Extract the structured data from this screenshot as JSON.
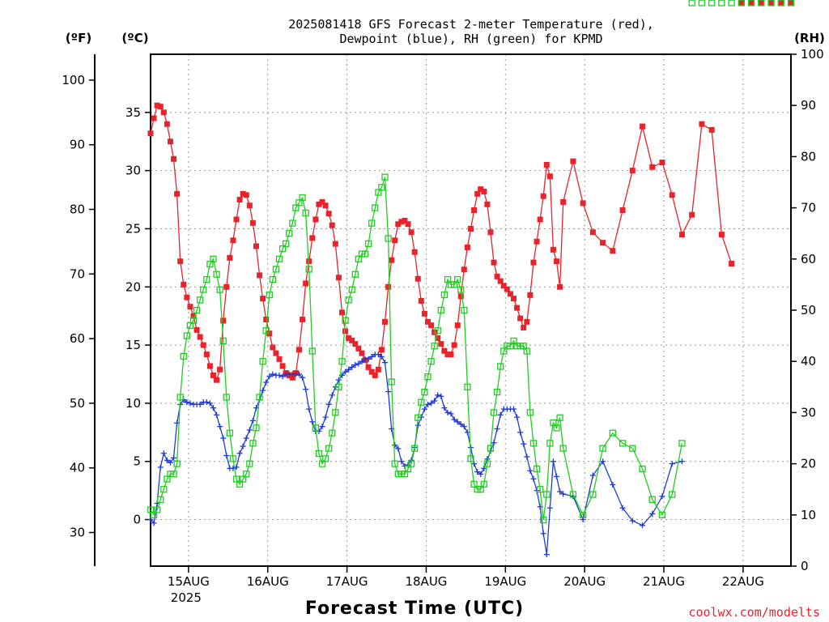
{
  "chart_data": {
    "type": "line",
    "title_line1": "2025081418 GFS Forecast 2-meter Temperature (red),",
    "title_line2": "Dewpoint (blue), RH (green) for KPMD",
    "xlabel": "Forecast Time (UTC)",
    "unit_f": "(ºF)",
    "unit_c": "(ºC)",
    "unit_rh": "(RH)",
    "credit": "coolwx.com/modelts",
    "xlim_hours": [
      -5.5,
      188.5
    ],
    "ylim_c": [
      -4,
      40
    ],
    "ylim_rh": [
      0,
      100
    ],
    "x_ticks": [
      {
        "hour": 6,
        "label": "15AUG",
        "sub": "2025"
      },
      {
        "hour": 30,
        "label": "16AUG",
        "sub": ""
      },
      {
        "hour": 54,
        "label": "17AUG",
        "sub": ""
      },
      {
        "hour": 78,
        "label": "18AUG",
        "sub": ""
      },
      {
        "hour": 102,
        "label": "19AUG",
        "sub": ""
      },
      {
        "hour": 126,
        "label": "20AUG",
        "sub": ""
      },
      {
        "hour": 150,
        "label": "21AUG",
        "sub": ""
      },
      {
        "hour": 174,
        "label": "22AUG",
        "sub": ""
      }
    ],
    "c_ticks": [
      0,
      5,
      10,
      15,
      20,
      25,
      30,
      35
    ],
    "f_ticks": [
      30,
      40,
      50,
      60,
      70,
      80,
      90,
      100
    ],
    "rh_ticks": [
      0,
      10,
      20,
      30,
      40,
      50,
      60,
      70,
      80,
      90,
      100
    ],
    "series": [
      {
        "name": "Temperature",
        "color": "#e8232a",
        "marker": "filled-square",
        "x": [
          -5.5,
          -4.5,
          -3.5,
          -2.5,
          -1.5,
          -0.5,
          0.5,
          1.5,
          2.5,
          3.5,
          4.5,
          5.5,
          6.5,
          7.5,
          8.5,
          9.5,
          10.5,
          11.5,
          12.5,
          13.5,
          14.5,
          15.5,
          16.5,
          17.5,
          18.5,
          19.5,
          20.5,
          21.5,
          22.5,
          23.5,
          24.5,
          25.5,
          26.5,
          27.5,
          28.5,
          29.5,
          30.5,
          31.5,
          32.5,
          33.5,
          34.5,
          35.5,
          36.5,
          37.5,
          38.5,
          39.5,
          40.5,
          41.5,
          42.5,
          43.5,
          44.5,
          45.5,
          46.5,
          47.5,
          48.5,
          49.5,
          50.5,
          51.5,
          52.5,
          53.5,
          54.5,
          55.5,
          56.5,
          57.5,
          58.5,
          59.5,
          60.5,
          61.5,
          62.5,
          63.5,
          64.5,
          65.5,
          66.5,
          67.5,
          68.5,
          69.5,
          70.5,
          71.5,
          72.5,
          73.5,
          74.5,
          75.5,
          76.5,
          77.5,
          78.5,
          79.5,
          80.5,
          81.5,
          82.5,
          83.5,
          84.5,
          85.5,
          86.5,
          87.5,
          88.5,
          89.5,
          90.5,
          91.5,
          92.5,
          93.5,
          94.5,
          95.5,
          96.5,
          97.5,
          98.5,
          99.5,
          100.5,
          101.5,
          102.5,
          103.5,
          104.5,
          105.5,
          106.5,
          107.5,
          108.5,
          109.5,
          110.5,
          111.5,
          112.5,
          113.5,
          114.5,
          115.5,
          116.5,
          117.5,
          118.5,
          119.5,
          122.5,
          125.5,
          128.5,
          131.5,
          134.5,
          137.5,
          140.5,
          143.5,
          146.5,
          149.5,
          152.5,
          155.5,
          158.5,
          161.5,
          164.5,
          167.5,
          170.5,
          173.5,
          176.5,
          179.5,
          182.5,
          185.5,
          188.5
        ],
        "c": [
          33.2,
          34.5,
          35.6,
          35.5,
          35.0,
          34.0,
          32.5,
          31.0,
          28.0,
          22.2,
          20.2,
          19.1,
          18.3,
          17.5,
          16.3,
          15.7,
          15.0,
          14.2,
          13.2,
          12.4,
          12.0,
          12.9,
          17.1,
          20.0,
          22.5,
          24.0,
          25.8,
          27.5,
          28.0,
          27.9,
          27.0,
          25.5,
          23.5,
          21.0,
          19.0,
          17.2,
          16.0,
          14.8,
          14.3,
          13.8,
          13.2,
          12.6,
          12.4,
          12.2,
          12.6,
          14.6,
          17.2,
          20.3,
          22.2,
          24.2,
          25.8,
          27.1,
          27.3,
          27.0,
          26.3,
          25.3,
          23.7,
          20.8,
          17.8,
          16.2,
          15.6,
          15.4,
          15.1,
          14.7,
          14.3,
          13.7,
          13.1,
          12.7,
          12.4,
          12.9,
          14.6,
          17.0,
          20.0,
          22.3,
          24.0,
          25.4,
          25.6,
          25.7,
          25.4,
          24.7,
          23.0,
          20.7,
          18.8,
          17.7,
          17.0,
          16.7,
          16.1,
          15.6,
          15.1,
          14.5,
          14.2,
          14.2,
          15.0,
          16.7,
          19.2,
          21.5,
          23.4,
          25.0,
          26.6,
          28.0,
          28.4,
          28.2,
          27.1,
          24.7,
          22.1,
          20.9,
          20.5,
          20.1,
          19.8,
          19.4,
          19.0,
          18.2,
          17.3,
          16.5,
          17.0,
          19.3,
          22.1,
          23.9,
          25.8,
          27.8,
          30.5,
          29.5,
          23.2,
          22.2,
          20.0,
          27.3,
          30.8,
          27.2,
          24.7,
          23.8,
          23.1,
          26.6,
          30.0,
          33.8,
          30.3,
          30.7,
          27.9,
          24.5,
          26.2,
          34.0,
          33.5,
          24.5,
          22.0
        ],
        "labels_show_c": false
      },
      {
        "name": "Dewpoint",
        "color": "#1f3bd6",
        "marker": "plus",
        "x": [
          -5.5,
          -4.5,
          -3.5,
          -2.5,
          -1.5,
          -0.5,
          0.5,
          1.5,
          2.5,
          3.5,
          4.5,
          5.5,
          6.5,
          7.5,
          8.5,
          9.5,
          10.5,
          11.5,
          12.5,
          13.5,
          14.5,
          15.5,
          16.5,
          17.5,
          18.5,
          19.5,
          20.5,
          21.5,
          22.5,
          23.5,
          24.5,
          25.5,
          26.5,
          27.5,
          28.5,
          29.5,
          30.5,
          31.5,
          32.5,
          33.5,
          34.5,
          35.5,
          36.5,
          37.5,
          38.5,
          39.5,
          40.5,
          41.5,
          42.5,
          43.5,
          44.5,
          45.5,
          46.5,
          47.5,
          48.5,
          49.5,
          50.5,
          51.5,
          52.5,
          53.5,
          54.5,
          55.5,
          56.5,
          57.5,
          58.5,
          59.5,
          60.5,
          61.5,
          62.5,
          63.5,
          64.5,
          65.5,
          66.5,
          67.5,
          68.5,
          69.5,
          70.5,
          71.5,
          72.5,
          73.5,
          74.5,
          75.5,
          76.5,
          77.5,
          78.5,
          79.5,
          80.5,
          81.5,
          82.5,
          83.5,
          84.5,
          85.5,
          86.5,
          87.5,
          88.5,
          89.5,
          90.5,
          91.5,
          92.5,
          93.5,
          94.5,
          95.5,
          96.5,
          97.5,
          98.5,
          99.5,
          100.5,
          101.5,
          102.5,
          103.5,
          104.5,
          105.5,
          106.5,
          107.5,
          108.5,
          109.5,
          110.5,
          111.5,
          112.5,
          113.5,
          114.5,
          115.5,
          116.5,
          117.5,
          118.5,
          119.5,
          122.5,
          125.5,
          128.5,
          131.5,
          134.5,
          137.5,
          140.5,
          143.5,
          146.5,
          149.5,
          152.5,
          155.5,
          158.5,
          161.5,
          164.5,
          167.5,
          170.5,
          173.5,
          176.5,
          179.5,
          182.5,
          185.5,
          188.5
        ],
        "c": [
          0.0,
          -0.3,
          1.4,
          4.5,
          5.7,
          5.1,
          4.9,
          5.3,
          8.3,
          9.9,
          10.3,
          10.1,
          10.0,
          9.9,
          9.9,
          9.9,
          10.1,
          10.1,
          10.0,
          9.6,
          9.0,
          8.0,
          7.0,
          5.5,
          4.4,
          4.4,
          4.5,
          5.7,
          6.3,
          7.0,
          7.7,
          8.5,
          9.6,
          10.3,
          11.1,
          11.8,
          12.3,
          12.5,
          12.4,
          12.4,
          12.3,
          12.5,
          12.5,
          12.5,
          12.5,
          12.5,
          12.2,
          11.2,
          9.5,
          8.4,
          7.6,
          7.6,
          8.0,
          8.8,
          9.9,
          10.7,
          11.4,
          12.0,
          12.4,
          12.7,
          12.9,
          13.1,
          13.3,
          13.4,
          13.6,
          13.8,
          13.8,
          14.0,
          14.2,
          14.2,
          14.0,
          13.5,
          11.0,
          7.8,
          6.4,
          6.1,
          5.0,
          4.6,
          4.7,
          5.1,
          6.2,
          8.1,
          8.8,
          9.5,
          9.9,
          10.0,
          10.2,
          10.7,
          10.6,
          9.6,
          9.2,
          9.1,
          8.6,
          8.4,
          8.2,
          8.0,
          7.5,
          6.2,
          4.8,
          4.1,
          3.9,
          4.4,
          5.2,
          5.9,
          6.6,
          7.8,
          9.0,
          9.5,
          9.5,
          9.5,
          9.5,
          8.8,
          7.5,
          6.5,
          5.4,
          4.2,
          3.5,
          2.5,
          1.1,
          -1.2,
          -3.0,
          1.0,
          5.0,
          3.7,
          2.4,
          2.2,
          2.0,
          0.0,
          3.8,
          5.0,
          3.0,
          1.0,
          -0.1,
          -0.5,
          0.5,
          2.0,
          4.8,
          5.0
        ],
        "labels_show_c": false
      },
      {
        "name": "RH",
        "color": "#1fcf1f",
        "marker": "open-square",
        "x": [
          -5.5,
          -4.5,
          -3.5,
          -2.5,
          -1.5,
          -0.5,
          0.5,
          1.5,
          2.5,
          3.5,
          4.5,
          5.5,
          6.5,
          7.5,
          8.5,
          9.5,
          10.5,
          11.5,
          12.5,
          13.5,
          14.5,
          15.5,
          16.5,
          17.5,
          18.5,
          19.5,
          20.5,
          21.5,
          22.5,
          23.5,
          24.5,
          25.5,
          26.5,
          27.5,
          28.5,
          29.5,
          30.5,
          31.5,
          32.5,
          33.5,
          34.5,
          35.5,
          36.5,
          37.5,
          38.5,
          39.5,
          40.5,
          41.5,
          42.5,
          43.5,
          44.5,
          45.5,
          46.5,
          47.5,
          48.5,
          49.5,
          50.5,
          51.5,
          52.5,
          53.5,
          54.5,
          55.5,
          56.5,
          57.5,
          58.5,
          59.5,
          60.5,
          61.5,
          62.5,
          63.5,
          64.5,
          65.5,
          66.5,
          67.5,
          68.5,
          69.5,
          70.5,
          71.5,
          72.5,
          73.5,
          74.5,
          75.5,
          76.5,
          77.5,
          78.5,
          79.5,
          80.5,
          81.5,
          82.5,
          83.5,
          84.5,
          85.5,
          86.5,
          87.5,
          88.5,
          89.5,
          90.5,
          91.5,
          92.5,
          93.5,
          94.5,
          95.5,
          96.5,
          97.5,
          98.5,
          99.5,
          100.5,
          101.5,
          102.5,
          103.5,
          104.5,
          105.5,
          106.5,
          107.5,
          108.5,
          109.5,
          110.5,
          111.5,
          112.5,
          113.5,
          114.5,
          115.5,
          116.5,
          117.5,
          118.5,
          119.5,
          122.5,
          125.5,
          128.5,
          131.5,
          134.5,
          137.5,
          140.5,
          143.5,
          146.5,
          149.5,
          152.5,
          155.5,
          158.5,
          161.5,
          164.5,
          167.5,
          170.5,
          173.5,
          176.5,
          179.5,
          182.5,
          185.5,
          188.5
        ],
        "rh": [
          11,
          10,
          11,
          13,
          15,
          17,
          18,
          18,
          20,
          33,
          41,
          45,
          47,
          48,
          50,
          52,
          54,
          56,
          59,
          60,
          57,
          54,
          44,
          33,
          26,
          21,
          17,
          16,
          17,
          18,
          20,
          24,
          27,
          33,
          40,
          46,
          53,
          56,
          58,
          60,
          62,
          63,
          65,
          67,
          70,
          71,
          72,
          69,
          58,
          42,
          27,
          22,
          20,
          21,
          23,
          26,
          30,
          35,
          40,
          48,
          52,
          54,
          57,
          60,
          61,
          61,
          63,
          67,
          70,
          73,
          74,
          76,
          64,
          36,
          20,
          18,
          18,
          18,
          19,
          20,
          23,
          29,
          32,
          34,
          37,
          40,
          43,
          46,
          50,
          53,
          56,
          55,
          55,
          56,
          54,
          50,
          35,
          21,
          16,
          15,
          15,
          16,
          20,
          23,
          30,
          34,
          39,
          42,
          43,
          43,
          44,
          43,
          43,
          43,
          42,
          30,
          24,
          19,
          15,
          9,
          14,
          24,
          28,
          27,
          29,
          23,
          14,
          10,
          14,
          23,
          26,
          24,
          23,
          19,
          13,
          10,
          14,
          24
        ],
        "labels_show_c": false
      }
    ]
  }
}
